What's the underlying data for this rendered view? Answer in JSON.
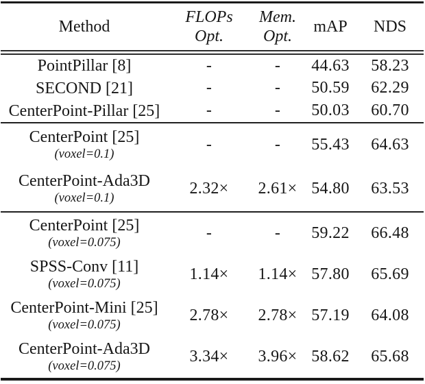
{
  "colors": {
    "background": "#ffffff",
    "text": "#161616",
    "rule": "#1a1a1a"
  },
  "header": {
    "method": "Method",
    "flops_line1": "FLOPs",
    "flops_line2": "Opt.",
    "mem_line1": "Mem.",
    "mem_line2": "Opt.",
    "map": "mAP",
    "nds": "NDS"
  },
  "groups": [
    {
      "rows": [
        {
          "method": "PointPillar [8]",
          "flops": "-",
          "mem": "-",
          "map": "44.63",
          "nds": "58.23"
        },
        {
          "method": "SECOND [21]",
          "flops": "-",
          "mem": "-",
          "map": "50.59",
          "nds": "62.29"
        },
        {
          "method": "CenterPoint-Pillar [25]",
          "flops": "-",
          "mem": "-",
          "map": "50.03",
          "nds": "60.70"
        }
      ]
    },
    {
      "rows": [
        {
          "method": "CenterPoint [25]",
          "sub": "(voxel=0.1)",
          "flops": "-",
          "mem": "-",
          "map": "55.43",
          "nds": "64.63"
        },
        {
          "method": "CenterPoint-Ada3D",
          "sub": "(voxel=0.1)",
          "flops": "2.32×",
          "mem": "2.61×",
          "map": "54.80",
          "nds": "63.53"
        }
      ]
    },
    {
      "rows": [
        {
          "method": "CenterPoint [25]",
          "sub": "(voxel=0.075)",
          "flops": "-",
          "mem": "-",
          "map": "59.22",
          "nds": "66.48"
        },
        {
          "method": "SPSS-Conv [11]",
          "sub": "(voxel=0.075)",
          "flops": "1.14×",
          "mem": "1.14×",
          "map": "57.80",
          "nds": "65.69"
        },
        {
          "method": "CenterPoint-Mini [25]",
          "sub": "(voxel=0.075)",
          "flops": "2.78×",
          "mem": "2.78×",
          "map": "57.19",
          "nds": "64.08"
        },
        {
          "method": "CenterPoint-Ada3D",
          "sub": "(voxel=0.075)",
          "flops": "3.34×",
          "mem": "3.96×",
          "map": "58.62",
          "nds": "65.68"
        }
      ]
    }
  ]
}
